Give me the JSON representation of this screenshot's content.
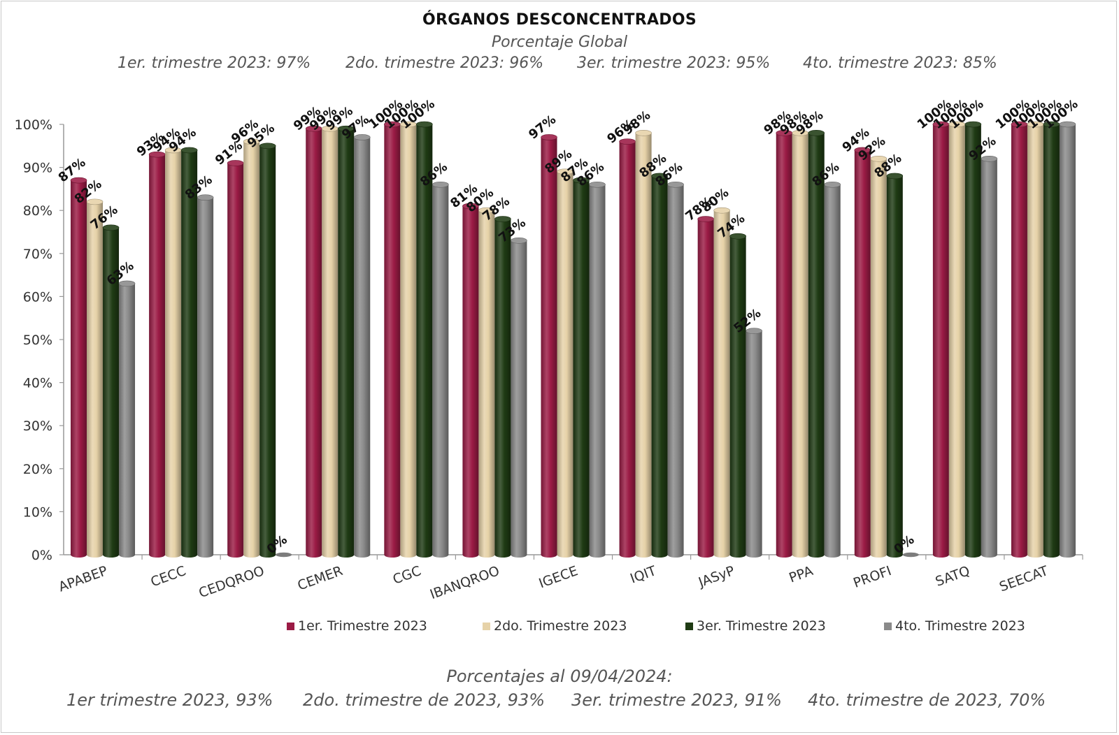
{
  "header": {
    "title": "ÓRGANOS DESCONCENTRADOS",
    "subtitle": "Porcentaje Global",
    "quarters": [
      "1er. trimestre 2023: 97%",
      "2do. trimestre 2023: 96%",
      "3er. trimestre 2023: 95%",
      "4to. trimestre 2023: 85%"
    ]
  },
  "footer": {
    "title": "Porcentajes al 09/04/2024:",
    "items": [
      "1er trimestre  2023,  93%",
      "2do. trimestre de 2023, 93%",
      "3er. trimestre 2023, 91%",
      "4to. trimestre de 2023, 70%"
    ]
  },
  "chart_data": {
    "type": "bar",
    "style": "3d-cylinder",
    "categories": [
      "APABEP",
      "CECC",
      "CEDQROO",
      "CEMER",
      "CGC",
      "IBANQROO",
      "IGECE",
      "IQIT",
      "JASyP",
      "PPA",
      "PROFI",
      "SATQ",
      "SEECAT"
    ],
    "series": [
      {
        "name": "1er. Trimestre 2023",
        "color": "#9b1b45",
        "values": [
          87,
          93,
          91,
          99,
          100,
          81,
          97,
          96,
          78,
          98,
          94,
          100,
          100
        ]
      },
      {
        "name": "2do. Trimestre 2023",
        "color": "#e6d2a8",
        "values": [
          82,
          94,
          96,
          99,
          100,
          80,
          89,
          98,
          80,
          98,
          92,
          100,
          100
        ]
      },
      {
        "name": "3er. Trimestre 2023",
        "color": "#1f3b14",
        "values": [
          76,
          94,
          95,
          99,
          100,
          78,
          87,
          88,
          74,
          98,
          88,
          100,
          100
        ]
      },
      {
        "name": "4to. Trimestre 2023",
        "color": "#8a8a8a",
        "values": [
          63,
          83,
          0,
          97,
          86,
          73,
          86,
          86,
          52,
          86,
          0,
          92,
          100
        ]
      }
    ],
    "data_labels": [
      [
        "87%",
        "93%",
        "91%",
        "99%",
        "100%",
        "81%",
        "97%",
        "96%",
        "78%",
        "98%",
        "94%",
        "100%",
        "100%"
      ],
      [
        "82%",
        "94%",
        "96%",
        "99%",
        "100%",
        "80%",
        "89%",
        "98%",
        "80%",
        "98%",
        "92%",
        "100%",
        "100%"
      ],
      [
        "76%",
        "94%",
        "95%",
        "99%",
        "100%",
        "78%",
        "87%",
        "88%",
        "74%",
        "98%",
        "88%",
        "100%",
        "100%"
      ],
      [
        "63%",
        "83%",
        "0%",
        "97%",
        "86%",
        "73%",
        "86%",
        "86%",
        "52%",
        "86%",
        "0%",
        "92%",
        "100%"
      ]
    ],
    "y_ticks": [
      "0%",
      "10%",
      "20%",
      "30%",
      "40%",
      "50%",
      "60%",
      "70%",
      "80%",
      "90%",
      "100%"
    ],
    "ylim": [
      0,
      100
    ],
    "grid": false,
    "legend_position": "bottom",
    "xlabel": "",
    "ylabel": ""
  }
}
